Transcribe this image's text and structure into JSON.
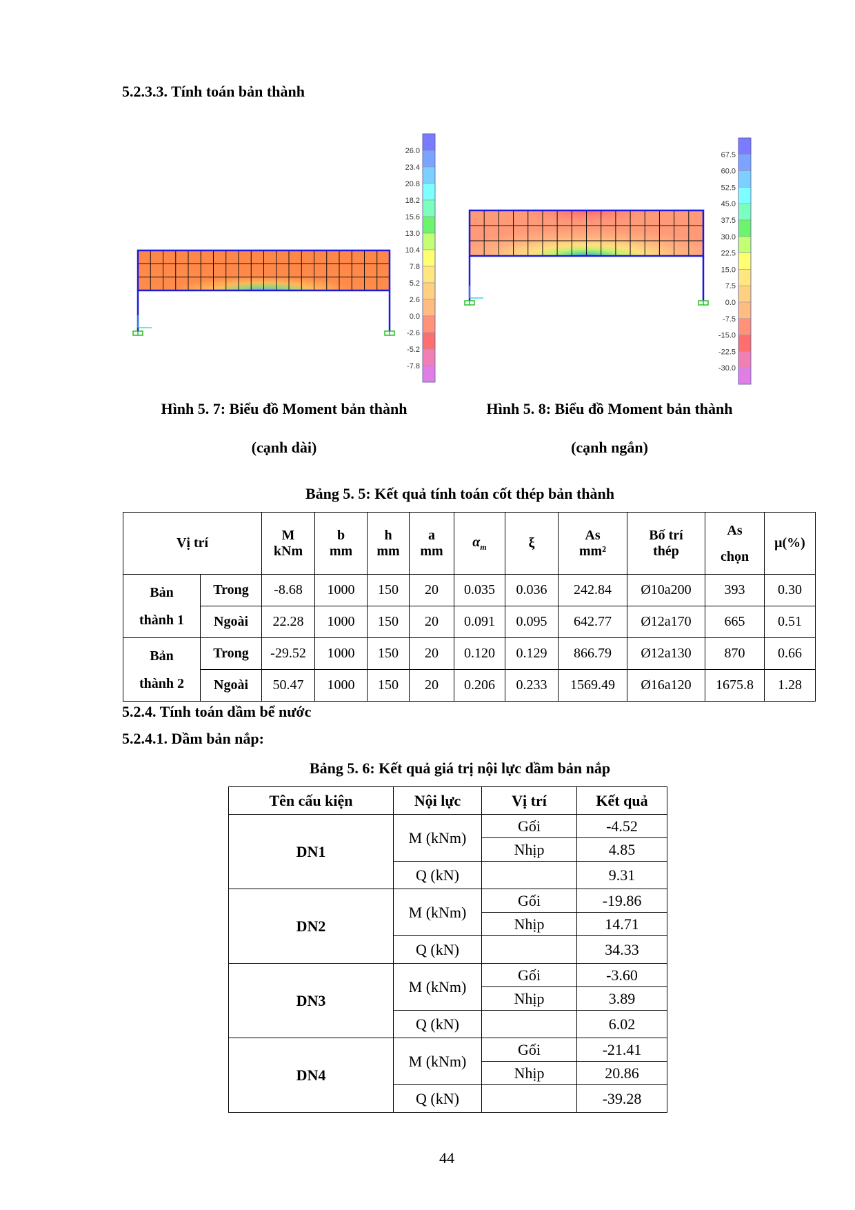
{
  "headings": {
    "h1": "5.2.3.3. Tính toán bản thành",
    "h2": "5.2.4. Tính toán dầm bể nước",
    "h3": "5.2.4.1. Dầm bản nắp:"
  },
  "figures": [
    {
      "caption_line1": "Hình 5. 7: Biểu đồ Moment bản thành",
      "caption_line2": "(cạnh dài)",
      "legend_labels": [
        "26.0",
        "23.4",
        "20.8",
        "18.2",
        "15.6",
        "13.0",
        "10.4",
        "7.8",
        "5.2",
        "2.6",
        "0.0",
        "-2.6",
        "-5.2",
        "-7.8"
      ]
    },
    {
      "caption_line1": "Hình 5. 8: Biểu đồ Moment bản thành",
      "caption_line2": "(cạnh ngắn)",
      "legend_labels": [
        "67.5",
        "60.0",
        "52.5",
        "45.0",
        "37.5",
        "30.0",
        "22.5",
        "15.0",
        "7.5",
        "0.0",
        "-7.5",
        "-15.0",
        "-22.5",
        "-30.0"
      ]
    }
  ],
  "legend_colors": [
    "#7b7bff",
    "#7aa4ff",
    "#7ad0ff",
    "#7dffff",
    "#7affbe",
    "#6cf56c",
    "#c2ff72",
    "#ffff72",
    "#ffe67e",
    "#ffd080",
    "#ffbc80",
    "#ff9278",
    "#ff6e6e",
    "#f080b4",
    "#e07ee6"
  ],
  "table1": {
    "caption": "Bảng 5. 5: Kết quả tính toán cốt thép bản thành",
    "headers": {
      "vitri": "Vị trí",
      "M": [
        "M",
        "kNm"
      ],
      "b": [
        "b",
        "mm"
      ],
      "h": [
        "h",
        "mm"
      ],
      "a": [
        "a",
        "mm"
      ],
      "alpha": [
        "α",
        "m"
      ],
      "xi": "ξ",
      "As": [
        "As",
        "mm²"
      ],
      "botri": [
        "Bố trí",
        "thép"
      ],
      "Aschon": [
        "As",
        "chọn"
      ],
      "mu": "μ(%)"
    },
    "groups": [
      {
        "label": [
          "Bản",
          "thành 1"
        ],
        "rows": [
          {
            "pos": "Trong",
            "values": [
              "-8.68",
              "1000",
              "150",
              "20",
              "0.035",
              "0.036",
              "242.84",
              "Ø10a200",
              "393",
              "0.30"
            ]
          },
          {
            "pos": "Ngoài",
            "values": [
              "22.28",
              "1000",
              "150",
              "20",
              "0.091",
              "0.095",
              "642.77",
              "Ø12a170",
              "665",
              "0.51"
            ]
          }
        ]
      },
      {
        "label": [
          "Bản",
          "thành 2"
        ],
        "rows": [
          {
            "pos": "Trong",
            "values": [
              "-29.52",
              "1000",
              "150",
              "20",
              "0.120",
              "0.129",
              "866.79",
              "Ø12a130",
              "870",
              "0.66"
            ]
          },
          {
            "pos": "Ngoài",
            "values": [
              "50.47",
              "1000",
              "150",
              "20",
              "0.206",
              "0.233",
              "1569.49",
              "Ø16a120",
              "1675.8",
              "1.28"
            ]
          }
        ]
      }
    ]
  },
  "table2": {
    "caption": "Bảng 5. 6: Kết quả giá trị nội lực dầm bản nắp",
    "headers": [
      "Tên cấu kiện",
      "Nội lực",
      "Vị trí",
      "Kết quả"
    ],
    "labels": {
      "moment": "M (kNm)",
      "shear": "Q (kN)",
      "support": "Gối",
      "span": "Nhịp"
    },
    "rows": [
      {
        "name": "DN1",
        "support": "-4.52",
        "span": "4.85",
        "shear": "9.31"
      },
      {
        "name": "DN2",
        "support": "-19.86",
        "span": "14.71",
        "shear": "34.33"
      },
      {
        "name": "DN3",
        "support": "-3.60",
        "span": "3.89",
        "shear": "6.02"
      },
      {
        "name": "DN4",
        "support": "-21.41",
        "span": "20.86",
        "shear": "-39.28"
      }
    ]
  },
  "page_number": "44"
}
